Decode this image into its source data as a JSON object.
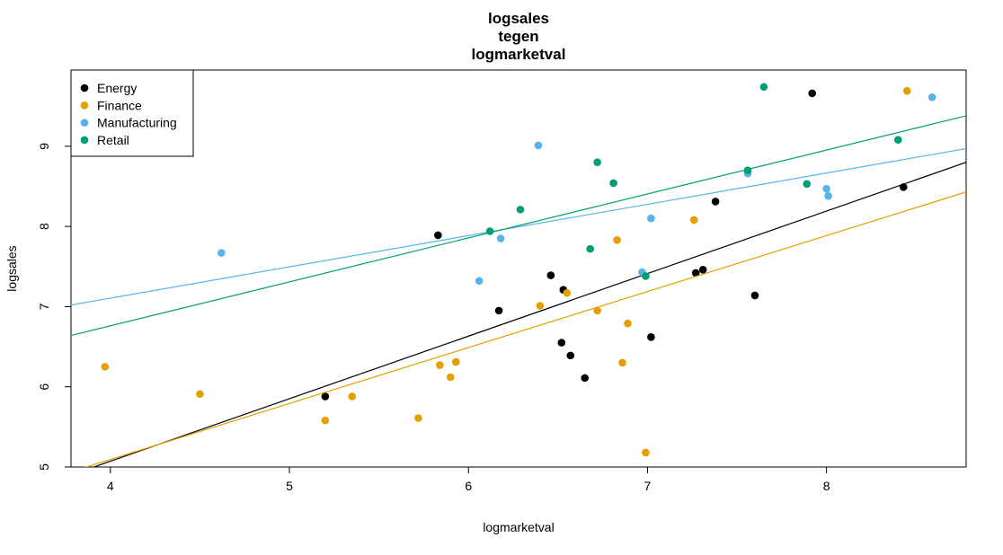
{
  "chart_data": {
    "type": "scatter",
    "title": [
      "logsales",
      "tegen",
      "logmarketval"
    ],
    "xlabel": "logmarketval",
    "ylabel": "logsales",
    "xlim": [
      3.78,
      8.78
    ],
    "ylim": [
      5.0,
      9.95
    ],
    "xticks": [
      4,
      5,
      6,
      7,
      8
    ],
    "yticks": [
      5,
      6,
      7,
      8,
      9
    ],
    "legend_position": "top-left",
    "series": [
      {
        "name": "Energy",
        "color": "#000000",
        "points": [
          [
            5.2,
            5.88
          ],
          [
            5.83,
            7.89
          ],
          [
            6.17,
            6.95
          ],
          [
            6.46,
            7.39
          ],
          [
            6.53,
            7.21
          ],
          [
            6.52,
            6.55
          ],
          [
            6.57,
            6.39
          ],
          [
            6.65,
            6.11
          ],
          [
            7.02,
            6.62
          ],
          [
            7.27,
            7.42
          ],
          [
            7.31,
            7.46
          ],
          [
            7.38,
            8.31
          ],
          [
            7.6,
            7.14
          ],
          [
            7.92,
            9.66
          ],
          [
            8.43,
            8.49
          ]
        ],
        "line": [
          [
            3.78,
            4.9
          ],
          [
            8.78,
            8.8
          ]
        ]
      },
      {
        "name": "Finance",
        "color": "#E69F00",
        "points": [
          [
            3.97,
            6.25
          ],
          [
            4.5,
            5.91
          ],
          [
            5.2,
            5.58
          ],
          [
            5.35,
            5.88
          ],
          [
            5.72,
            5.61
          ],
          [
            5.84,
            6.27
          ],
          [
            5.9,
            6.12
          ],
          [
            5.93,
            6.31
          ],
          [
            6.4,
            7.01
          ],
          [
            6.55,
            7.17
          ],
          [
            6.72,
            6.95
          ],
          [
            6.83,
            7.83
          ],
          [
            6.86,
            6.3
          ],
          [
            6.89,
            6.79
          ],
          [
            6.99,
            5.18
          ],
          [
            7.26,
            8.08
          ],
          [
            8.45,
            9.69
          ]
        ],
        "line": [
          [
            3.78,
            4.94
          ],
          [
            8.78,
            8.43
          ]
        ]
      },
      {
        "name": "Manufacturing",
        "color": "#56B4E9",
        "points": [
          [
            4.62,
            7.67
          ],
          [
            6.06,
            7.32
          ],
          [
            6.18,
            7.85
          ],
          [
            6.39,
            9.01
          ],
          [
            6.97,
            7.43
          ],
          [
            7.02,
            8.1
          ],
          [
            7.56,
            8.66
          ],
          [
            8.0,
            8.47
          ],
          [
            8.01,
            8.38
          ],
          [
            8.59,
            9.61
          ]
        ],
        "line": [
          [
            3.78,
            7.02
          ],
          [
            8.78,
            8.97
          ]
        ]
      },
      {
        "name": "Retail",
        "color": "#009E73",
        "points": [
          [
            6.12,
            7.94
          ],
          [
            6.29,
            8.21
          ],
          [
            6.68,
            7.72
          ],
          [
            6.72,
            8.8
          ],
          [
            6.81,
            8.54
          ],
          [
            6.99,
            7.38
          ],
          [
            7.56,
            8.7
          ],
          [
            7.65,
            9.74
          ],
          [
            7.89,
            8.53
          ],
          [
            8.4,
            9.08
          ]
        ],
        "line": [
          [
            3.78,
            6.64
          ],
          [
            8.78,
            9.38
          ]
        ]
      }
    ]
  }
}
